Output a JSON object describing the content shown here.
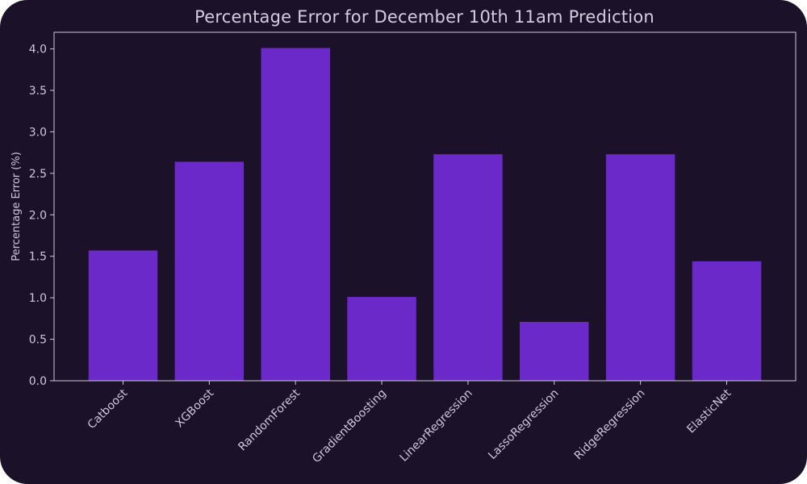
{
  "chart_data": {
    "type": "bar",
    "title": "Percentage Error for December 10th 11am Prediction",
    "xlabel": "",
    "ylabel": "Percentage Error (%)",
    "categories": [
      "Catboost",
      "XGBoost",
      "RandomForest",
      "GradientBoosting",
      "LinearRegression",
      "LassoRegression",
      "RidgeRegression",
      "ElasticNet"
    ],
    "values": [
      1.57,
      2.64,
      4.01,
      1.01,
      2.73,
      0.71,
      2.73,
      1.44
    ],
    "ylim": [
      0,
      4.2
    ],
    "yticks": [
      "0.0",
      "0.5",
      "1.0",
      "1.5",
      "2.0",
      "2.5",
      "3.0",
      "3.5",
      "4.0"
    ],
    "grid": false,
    "legend": "none"
  },
  "colors": {
    "background": "#1b1129",
    "bar": "#6a29c8",
    "axis": "#cfc7da",
    "text": "#d6cce0"
  }
}
